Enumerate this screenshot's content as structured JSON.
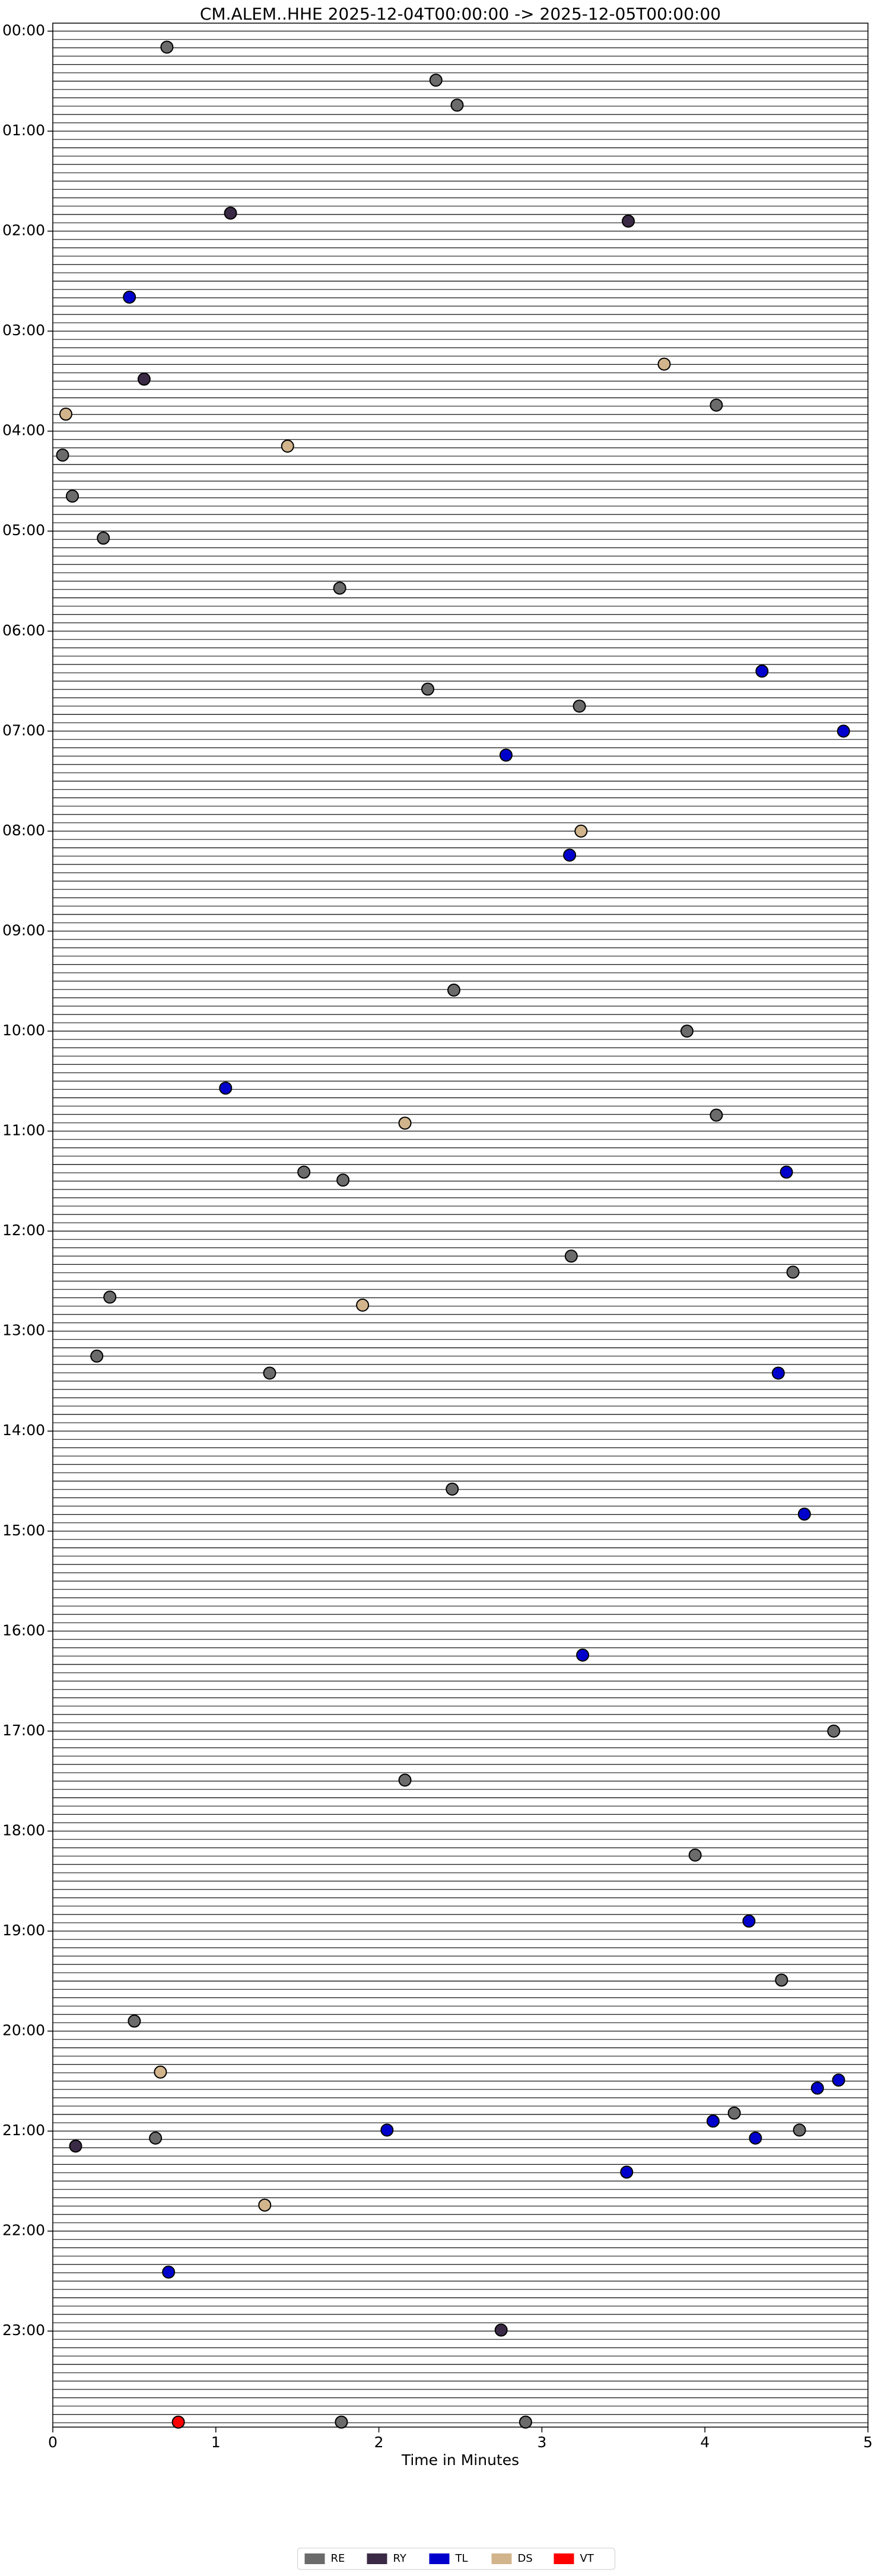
{
  "chart_data": {
    "type": "scatter",
    "title": "CM.ALEM..HHE  2025-12-04T00:00:00 -> 2025-12-05T00:00:00",
    "x_label": "Time in Minutes",
    "xlim": [
      0,
      5
    ],
    "xticks": [
      0,
      1,
      2,
      3,
      4,
      5
    ],
    "ylim": [
      -0.08,
      23.96
    ],
    "y_inverted": true,
    "yticks": [
      {
        "value": 0,
        "label": "00:00"
      },
      {
        "value": 1,
        "label": "01:00"
      },
      {
        "value": 2,
        "label": "02:00"
      },
      {
        "value": 3,
        "label": "03:00"
      },
      {
        "value": 4,
        "label": "04:00"
      },
      {
        "value": 5,
        "label": "05:00"
      },
      {
        "value": 6,
        "label": "06:00"
      },
      {
        "value": 7,
        "label": "07:00"
      },
      {
        "value": 8,
        "label": "08:00"
      },
      {
        "value": 9,
        "label": "09:00"
      },
      {
        "value": 10,
        "label": "10:00"
      },
      {
        "value": 11,
        "label": "11:00"
      },
      {
        "value": 12,
        "label": "12:00"
      },
      {
        "value": 13,
        "label": "13:00"
      },
      {
        "value": 14,
        "label": "14:00"
      },
      {
        "value": 15,
        "label": "15:00"
      },
      {
        "value": 16,
        "label": "16:00"
      },
      {
        "value": 17,
        "label": "17:00"
      },
      {
        "value": 18,
        "label": "18:00"
      },
      {
        "value": 19,
        "label": "19:00"
      },
      {
        "value": 20,
        "label": "20:00"
      },
      {
        "value": 21,
        "label": "21:00"
      },
      {
        "value": 22,
        "label": "22:00"
      },
      {
        "value": 23,
        "label": "23:00"
      }
    ],
    "legend": "lower center",
    "series": [
      {
        "name": "RE",
        "color": "#6b6b6b",
        "x": [
          0.7,
          2.35,
          2.48,
          4.07,
          0.06,
          0.12,
          0.31,
          1.76,
          2.3,
          3.23,
          2.46,
          3.89,
          4.07,
          1.54,
          1.78,
          3.18,
          4.54,
          0.35,
          0.27,
          1.33,
          2.45,
          4.79,
          2.16,
          3.94,
          4.47,
          0.5,
          4.18,
          4.58,
          0.63,
          1.77,
          2.9
        ],
        "values": [
          0.16,
          0.49,
          0.74,
          3.74,
          4.24,
          4.65,
          5.07,
          5.57,
          6.58,
          6.75,
          9.59,
          10.0,
          10.84,
          11.41,
          11.49,
          12.25,
          12.41,
          12.66,
          13.25,
          13.42,
          14.58,
          17.0,
          17.49,
          18.24,
          19.49,
          19.9,
          20.82,
          20.99,
          21.07,
          23.91,
          23.91
        ]
      },
      {
        "name": "RY",
        "color": "#3b2a45",
        "x": [
          1.09,
          3.53,
          0.56,
          0.14,
          2.75
        ],
        "values": [
          1.82,
          1.9,
          3.48,
          21.15,
          22.99
        ]
      },
      {
        "name": "TL",
        "color": "#0000cd",
        "x": [
          0.47,
          4.35,
          4.85,
          2.78,
          3.17,
          1.06,
          4.5,
          4.45,
          4.61,
          3.25,
          4.27,
          4.82,
          4.69,
          4.05,
          2.05,
          4.31,
          3.52,
          0.71
        ],
        "values": [
          2.66,
          6.4,
          7.0,
          7.24,
          8.24,
          10.57,
          11.41,
          13.42,
          14.83,
          16.24,
          18.9,
          20.49,
          20.57,
          20.9,
          20.99,
          21.07,
          21.41,
          22.41
        ]
      },
      {
        "name": "DS",
        "color": "#d2b48c",
        "x": [
          3.75,
          0.08,
          1.44,
          3.24,
          2.16,
          1.9,
          0.66,
          1.3
        ],
        "values": [
          3.33,
          3.83,
          4.15,
          8.0,
          10.92,
          12.74,
          20.41,
          21.74
        ]
      },
      {
        "name": "VT",
        "color": "#ff0000",
        "x": [
          0.77
        ],
        "values": [
          23.91
        ]
      }
    ]
  }
}
